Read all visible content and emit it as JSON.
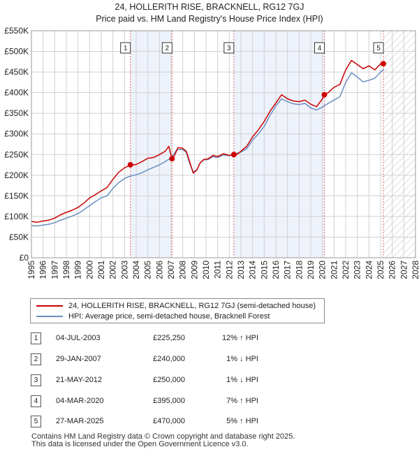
{
  "header": {
    "title_line1": "24, HOLLERITH RISE, BRACKNELL, RG12 7GJ",
    "title_line2": "Price paid vs. HM Land Registry's House Price Index (HPI)"
  },
  "colors": {
    "price_line": "#cc0000",
    "hpi_line": "#6a8fc0",
    "shade": "#eef2fb",
    "marker_line": "#e06666",
    "grid": "#d0d0d0"
  },
  "legend": {
    "property_label": "24, HOLLERITH RISE, BRACKNELL, RG12 7GJ (semi-detached house)",
    "hpi_label": "HPI: Average price, semi-detached house, Bracknell Forest"
  },
  "transactions": [
    {
      "num": "1",
      "date": "04-JUL-2003",
      "price": "£225,250",
      "hpi": "12% ↑ HPI"
    },
    {
      "num": "2",
      "date": "29-JAN-2007",
      "price": "£240,000",
      "hpi": "1% ↓ HPI"
    },
    {
      "num": "3",
      "date": "21-MAY-2012",
      "price": "£250,000",
      "hpi": "1% ↓ HPI"
    },
    {
      "num": "4",
      "date": "04-MAR-2020",
      "price": "£395,000",
      "hpi": "7% ↑ HPI"
    },
    {
      "num": "5",
      "date": "27-MAR-2025",
      "price": "£470,000",
      "hpi": "5% ↑ HPI"
    }
  ],
  "footer": {
    "line1": "Contains HM Land Registry data © Crown copyright and database right 2025.",
    "line2": "This data is licensed under the Open Government Licence v3.0."
  },
  "chart_data": {
    "type": "line",
    "title": "24, HOLLERITH RISE, BRACKNELL, RG12 7GJ — Price paid vs. HM Land Registry's House Price Index (HPI)",
    "xlabel": "",
    "ylabel": "",
    "xlim": [
      1995,
      2028
    ],
    "ylim": [
      0,
      550000
    ],
    "x_ticks": [
      "1995",
      "1996",
      "1997",
      "1998",
      "1999",
      "2000",
      "2001",
      "2002",
      "2003",
      "2004",
      "2005",
      "2006",
      "2007",
      "2008",
      "2009",
      "2010",
      "2011",
      "2012",
      "2013",
      "2014",
      "2015",
      "2016",
      "2017",
      "2018",
      "2019",
      "2020",
      "2021",
      "2022",
      "2023",
      "2024",
      "2025",
      "2026",
      "2027",
      "2028"
    ],
    "y_ticks": [
      {
        "value": 0,
        "label": "£0"
      },
      {
        "value": 50000,
        "label": "£50K"
      },
      {
        "value": 100000,
        "label": "£100K"
      },
      {
        "value": 150000,
        "label": "£150K"
      },
      {
        "value": 200000,
        "label": "£200K"
      },
      {
        "value": 250000,
        "label": "£250K"
      },
      {
        "value": 300000,
        "label": "£300K"
      },
      {
        "value": 350000,
        "label": "£350K"
      },
      {
        "value": 400000,
        "label": "£400K"
      },
      {
        "value": 450000,
        "label": "£450K"
      },
      {
        "value": 500000,
        "label": "£500K"
      },
      {
        "value": 550000,
        "label": "£550K"
      }
    ],
    "series": [
      {
        "name": "24, HOLLERITH RISE, BRACKNELL, RG12 7GJ (semi-detached house)",
        "x": [
          1995.0,
          1995.5,
          1996.0,
          1996.5,
          1997.0,
          1997.5,
          1998.0,
          1998.5,
          1999.0,
          1999.5,
          2000.0,
          2000.5,
          2001.0,
          2001.5,
          2002.0,
          2002.5,
          2003.0,
          2003.5,
          2004.0,
          2004.5,
          2005.0,
          2005.5,
          2006.0,
          2006.5,
          2006.8,
          2007.08,
          2007.3,
          2007.6,
          2008.0,
          2008.3,
          2008.6,
          2008.9,
          2009.2,
          2009.5,
          2009.8,
          2010.2,
          2010.6,
          2011.0,
          2011.5,
          2012.0,
          2012.39,
          2012.7,
          2013.0,
          2013.5,
          2014.0,
          2014.5,
          2015.0,
          2015.5,
          2016.0,
          2016.5,
          2017.0,
          2017.5,
          2018.0,
          2018.5,
          2019.0,
          2019.5,
          2020.0,
          2020.17,
          2020.5,
          2021.0,
          2021.5,
          2022.0,
          2022.5,
          2023.0,
          2023.5,
          2024.0,
          2024.5,
          2025.0,
          2025.24
        ],
        "y": [
          88000,
          86000,
          89000,
          91000,
          96000,
          104000,
          110000,
          115000,
          122000,
          132000,
          145000,
          153000,
          162000,
          170000,
          190000,
          207000,
          218000,
          224000,
          226000,
          233000,
          241000,
          243000,
          250000,
          258000,
          270000,
          240000,
          248000,
          267000,
          265000,
          258000,
          232000,
          205000,
          212000,
          230000,
          238000,
          240000,
          248000,
          245000,
          252000,
          248000,
          250000,
          251000,
          258000,
          270000,
          293000,
          310000,
          330000,
          355000,
          375000,
          395000,
          385000,
          380000,
          378000,
          382000,
          372000,
          366000,
          385000,
          395000,
          400000,
          413000,
          420000,
          455000,
          478000,
          468000,
          458000,
          465000,
          455000,
          470000,
          470000
        ]
      },
      {
        "name": "HPI: Average price, semi-detached house, Bracknell Forest",
        "x": [
          1995.0,
          1995.5,
          1996.0,
          1996.5,
          1997.0,
          1997.5,
          1998.0,
          1998.5,
          1999.0,
          1999.5,
          2000.0,
          2000.5,
          2001.0,
          2001.5,
          2002.0,
          2002.5,
          2003.0,
          2003.5,
          2004.0,
          2004.5,
          2005.0,
          2005.5,
          2006.0,
          2006.5,
          2007.0,
          2007.5,
          2008.0,
          2008.3,
          2008.6,
          2008.9,
          2009.2,
          2009.5,
          2009.8,
          2010.2,
          2010.6,
          2011.0,
          2011.5,
          2012.0,
          2012.5,
          2013.0,
          2013.5,
          2014.0,
          2014.5,
          2015.0,
          2015.5,
          2016.0,
          2016.5,
          2017.0,
          2017.5,
          2018.0,
          2018.5,
          2019.0,
          2019.5,
          2020.0,
          2020.5,
          2021.0,
          2021.5,
          2022.0,
          2022.5,
          2023.0,
          2023.5,
          2024.0,
          2024.5,
          2025.0,
          2025.3
        ],
        "y": [
          78000,
          77000,
          79000,
          81000,
          85000,
          91000,
          96000,
          101000,
          107000,
          116000,
          126000,
          136000,
          145000,
          150000,
          168000,
          182000,
          192000,
          198000,
          201000,
          206000,
          213000,
          219000,
          225000,
          233000,
          242000,
          262000,
          262000,
          255000,
          228000,
          208000,
          213000,
          230000,
          237000,
          238000,
          245000,
          243000,
          249000,
          247000,
          252000,
          256000,
          264000,
          285000,
          300000,
          318000,
          345000,
          368000,
          385000,
          378000,
          373000,
          371000,
          374000,
          363000,
          358000,
          365000,
          374000,
          382000,
          390000,
          425000,
          448000,
          438000,
          426000,
          430000,
          435000,
          450000,
          457000
        ]
      }
    ],
    "sale_markers": [
      {
        "label": "1",
        "x": 2003.5,
        "y": 225250
      },
      {
        "label": "2",
        "x": 2007.08,
        "y": 240000
      },
      {
        "label": "3",
        "x": 2012.39,
        "y": 250000
      },
      {
        "label": "4",
        "x": 2020.17,
        "y": 395000
      },
      {
        "label": "5",
        "x": 2025.24,
        "y": 470000
      }
    ],
    "shaded_ranges": [
      [
        2003.5,
        2007.08
      ],
      [
        2012.39,
        2020.17
      ]
    ],
    "forecast_hatch_from": 2025.24
  }
}
